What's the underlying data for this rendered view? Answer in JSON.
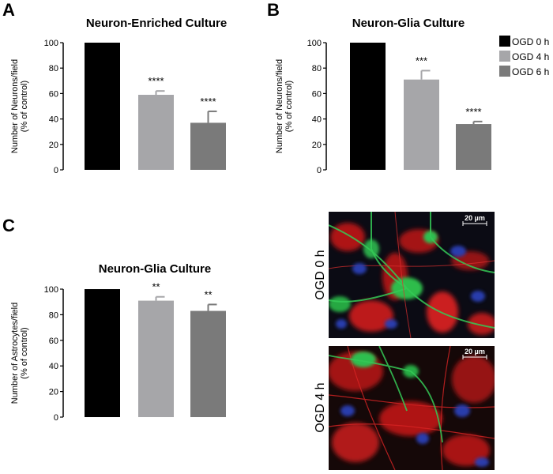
{
  "panels": {
    "A": "A",
    "B": "B",
    "C": "C"
  },
  "colors": {
    "ogd0": "#000000",
    "ogd4": "#a6a6a9",
    "ogd6": "#7a7a7a"
  },
  "legend": {
    "items": [
      {
        "label": "OGD 0 h",
        "color": "#000000"
      },
      {
        "label": "OGD 4 h",
        "color": "#a6a6a9"
      },
      {
        "label": "OGD 6 h",
        "color": "#7a7a7a"
      }
    ]
  },
  "chart_data": [
    {
      "type": "bar",
      "title": "Neuron-Enriched Culture",
      "ylabel": [
        "Number of Neurons/field",
        "(% of control)"
      ],
      "categories": [
        "OGD 0 h",
        "OGD 4 h",
        "OGD 6 h"
      ],
      "values": [
        100,
        59,
        37
      ],
      "errors": [
        0,
        3,
        9
      ],
      "significance": [
        "",
        "****",
        "****"
      ],
      "ylim": [
        0,
        100
      ],
      "yticks": [
        "0",
        "20",
        "40",
        "60",
        "80",
        "100"
      ]
    },
    {
      "type": "bar",
      "title": "Neuron-Glia Culture",
      "ylabel": [
        "Number of Neurons/field",
        "(% of control)"
      ],
      "categories": [
        "OGD 0 h",
        "OGD 4 h",
        "OGD 6 h"
      ],
      "values": [
        100,
        71,
        36
      ],
      "errors": [
        0,
        7,
        2
      ],
      "significance": [
        "",
        "***",
        "****"
      ],
      "ylim": [
        0,
        100
      ],
      "yticks": [
        "0",
        "20",
        "40",
        "60",
        "80",
        "100"
      ]
    },
    {
      "type": "bar",
      "title": "Neuron-Glia Culture",
      "ylabel": [
        "Number of Astrocytes/field",
        "(% of control)"
      ],
      "categories": [
        "OGD 0 h",
        "OGD 4 h",
        "OGD 6 h"
      ],
      "values": [
        100,
        91,
        83
      ],
      "errors": [
        0,
        3,
        5
      ],
      "significance": [
        "",
        "**",
        "**"
      ],
      "ylim": [
        0,
        100
      ],
      "yticks": [
        "0",
        "20",
        "40",
        "60",
        "80",
        "100"
      ]
    }
  ],
  "micrographs": [
    {
      "label": "OGD 0 h",
      "scale": "20 µm"
    },
    {
      "label": "OGD 4 h",
      "scale": "20 µm"
    }
  ]
}
